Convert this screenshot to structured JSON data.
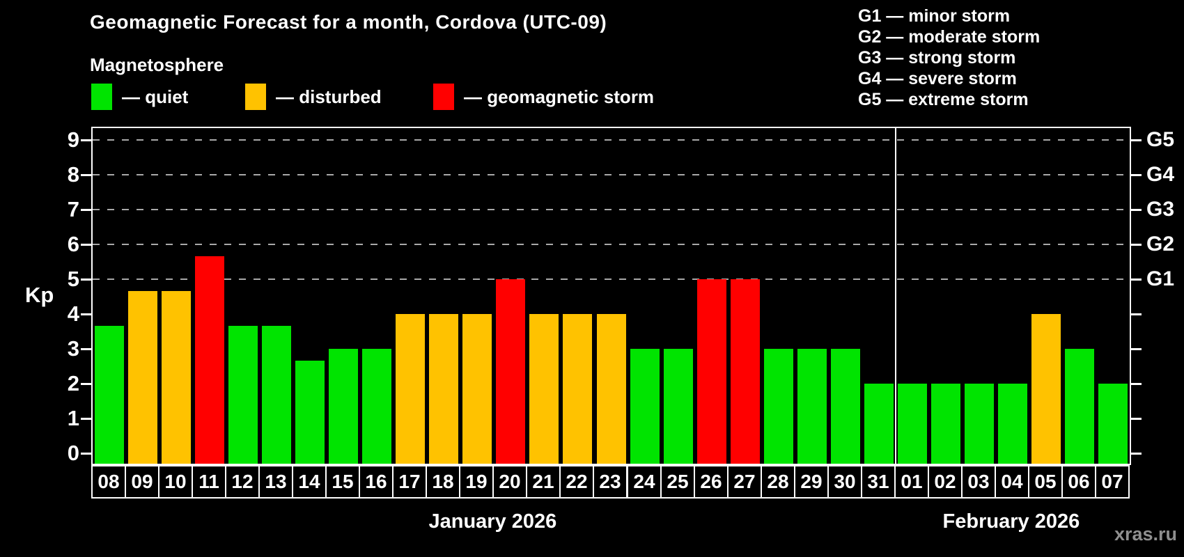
{
  "header": {
    "title": "Geomagnetic Forecast for a month, Cordova (UTC-09)",
    "subtitle": "Magnetosphere",
    "legend": [
      {
        "key": "quiet",
        "label": "— quiet",
        "color": "#00e400"
      },
      {
        "key": "disturbed",
        "label": "— disturbed",
        "color": "#ffc200"
      },
      {
        "key": "storm",
        "label": "— geomagnetic storm",
        "color": "#ff0000"
      }
    ],
    "storm_scale": [
      "G1 — minor storm",
      "G2 — moderate storm",
      "G3 — strong storm",
      "G4 — severe storm",
      "G5 — extreme storm"
    ]
  },
  "chart_data": {
    "type": "bar",
    "ylabel": "Kp",
    "ylim": [
      0,
      9.4
    ],
    "yticks": [
      0,
      1,
      2,
      3,
      4,
      5,
      6,
      7,
      8,
      9
    ],
    "gridlines_at": [
      5,
      6,
      7,
      8,
      9
    ],
    "grid_color": "#a9a9a9",
    "right_axis": [
      {
        "kp": 5,
        "label": "G1"
      },
      {
        "kp": 6,
        "label": "G2"
      },
      {
        "kp": 7,
        "label": "G3"
      },
      {
        "kp": 8,
        "label": "G4"
      },
      {
        "kp": 9,
        "label": "G5"
      }
    ],
    "categories": [
      "08",
      "09",
      "10",
      "11",
      "12",
      "13",
      "14",
      "15",
      "16",
      "17",
      "18",
      "19",
      "20",
      "21",
      "22",
      "23",
      "24",
      "25",
      "26",
      "27",
      "28",
      "29",
      "30",
      "31",
      "01",
      "02",
      "03",
      "04",
      "05",
      "06",
      "07"
    ],
    "values": [
      3.67,
      4.67,
      4.67,
      5.67,
      3.67,
      3.67,
      2.67,
      3,
      3,
      4,
      4,
      4,
      5,
      4,
      4,
      4,
      3,
      3,
      5,
      5,
      3,
      3,
      3,
      2,
      2,
      2,
      2,
      2,
      4,
      3,
      2
    ],
    "statuses": [
      "quiet",
      "disturbed",
      "disturbed",
      "storm",
      "quiet",
      "quiet",
      "quiet",
      "quiet",
      "quiet",
      "disturbed",
      "disturbed",
      "disturbed",
      "storm",
      "disturbed",
      "disturbed",
      "disturbed",
      "quiet",
      "quiet",
      "storm",
      "storm",
      "quiet",
      "quiet",
      "quiet",
      "quiet",
      "quiet",
      "quiet",
      "quiet",
      "quiet",
      "disturbed",
      "quiet",
      "quiet"
    ],
    "status_colors": {
      "quiet": "#00e400",
      "disturbed": "#ffc200",
      "storm": "#ff0000"
    },
    "months": [
      {
        "label": "January 2026",
        "days": 24
      },
      {
        "label": "February 2026",
        "days": 7
      }
    ],
    "legend_position": "top-left",
    "grid": "dashed horizontal at storm levels only"
  },
  "watermark": "xras.ru"
}
